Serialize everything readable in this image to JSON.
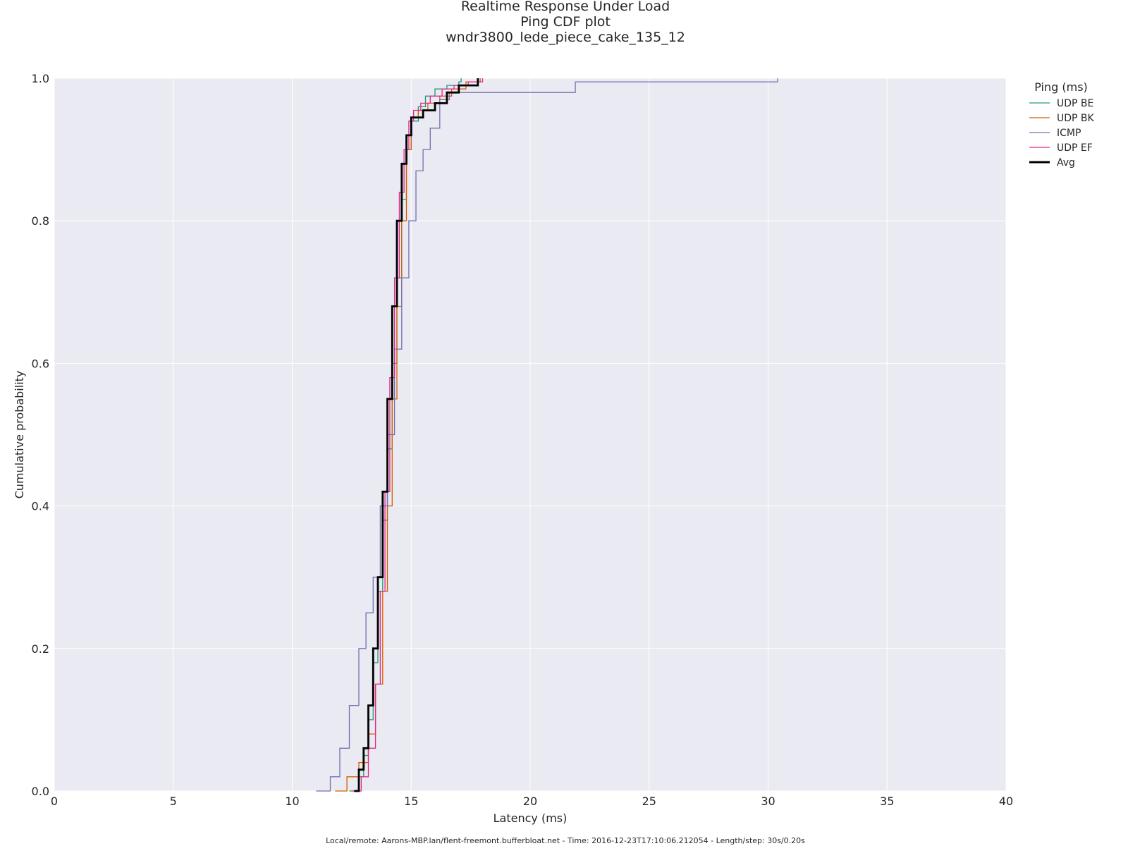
{
  "chart_data": {
    "type": "line",
    "title": [
      "Realtime Response Under Load",
      "Ping CDF plot",
      "wndr3800_lede_piece_cake_135_12"
    ],
    "xlabel": "Latency (ms)",
    "ylabel": "Cumulative probability",
    "xlim": [
      0,
      40
    ],
    "ylim": [
      0,
      1
    ],
    "xticks": [
      "0",
      "5",
      "10",
      "15",
      "20",
      "25",
      "30",
      "35",
      "40"
    ],
    "yticks": [
      "0.0",
      "0.2",
      "0.4",
      "0.6",
      "0.8",
      "1.0"
    ],
    "grid": true,
    "legend": {
      "title": "Ping (ms)",
      "placement": "outside-right"
    },
    "footer": "Local/remote: Aarons-MBP.lan/flent-freemont.bufferbloat.net - Time: 2016-12-23T17:10:06.212054 - Length/step: 30s/0.20s",
    "series": [
      {
        "name": "UDP BE",
        "color": "#1b9e77",
        "width": 1.3,
        "x": [
          12.4,
          12.8,
          13.0,
          13.2,
          13.4,
          13.6,
          13.8,
          14.0,
          14.2,
          14.4,
          14.6,
          14.8,
          15.0,
          15.3,
          15.6,
          16.0,
          16.5,
          17.0,
          17.1
        ],
        "y": [
          0.0,
          0.02,
          0.05,
          0.1,
          0.18,
          0.28,
          0.38,
          0.48,
          0.6,
          0.72,
          0.83,
          0.9,
          0.94,
          0.96,
          0.975,
          0.985,
          0.99,
          0.995,
          1.0
        ]
      },
      {
        "name": "UDP BK",
        "color": "#d95f02",
        "width": 1.3,
        "x": [
          11.8,
          12.3,
          12.8,
          13.2,
          13.5,
          13.8,
          14.0,
          14.2,
          14.4,
          14.6,
          14.8,
          15.0,
          15.3,
          15.7,
          16.2,
          16.7,
          17.3,
          17.9
        ],
        "y": [
          0.0,
          0.02,
          0.04,
          0.08,
          0.15,
          0.28,
          0.4,
          0.55,
          0.68,
          0.8,
          0.9,
          0.945,
          0.955,
          0.965,
          0.975,
          0.985,
          0.995,
          1.0
        ]
      },
      {
        "name": "ICMP",
        "color": "#7570b3",
        "width": 1.3,
        "x": [
          11.0,
          11.6,
          12.0,
          12.4,
          12.8,
          13.1,
          13.4,
          13.7,
          14.0,
          14.3,
          14.6,
          14.9,
          15.2,
          15.5,
          15.8,
          16.2,
          16.6,
          17.5,
          21.7,
          21.9,
          30.4
        ],
        "y": [
          0.0,
          0.02,
          0.06,
          0.12,
          0.2,
          0.25,
          0.3,
          0.4,
          0.5,
          0.62,
          0.72,
          0.8,
          0.87,
          0.9,
          0.93,
          0.97,
          0.98,
          0.98,
          0.98,
          0.995,
          1.0
        ]
      },
      {
        "name": "UDP EF",
        "color": "#e7298a",
        "width": 1.3,
        "x": [
          12.5,
          12.9,
          13.2,
          13.5,
          13.7,
          13.9,
          14.1,
          14.3,
          14.5,
          14.7,
          14.9,
          15.1,
          15.4,
          15.8,
          16.3,
          16.8,
          17.4,
          18.0
        ],
        "y": [
          0.0,
          0.02,
          0.06,
          0.15,
          0.28,
          0.42,
          0.58,
          0.72,
          0.84,
          0.9,
          0.94,
          0.955,
          0.965,
          0.975,
          0.985,
          0.99,
          0.995,
          1.0
        ]
      },
      {
        "name": "Avg",
        "color": "#000000",
        "width": 2.8,
        "x": [
          12.6,
          12.8,
          13.0,
          13.2,
          13.4,
          13.6,
          13.8,
          14.0,
          14.2,
          14.4,
          14.6,
          14.8,
          15.0,
          15.5,
          16.0,
          16.5,
          17.0,
          17.8
        ],
        "y": [
          0.0,
          0.03,
          0.06,
          0.12,
          0.2,
          0.3,
          0.42,
          0.55,
          0.68,
          0.8,
          0.88,
          0.92,
          0.945,
          0.955,
          0.965,
          0.98,
          0.99,
          1.0
        ]
      }
    ]
  }
}
